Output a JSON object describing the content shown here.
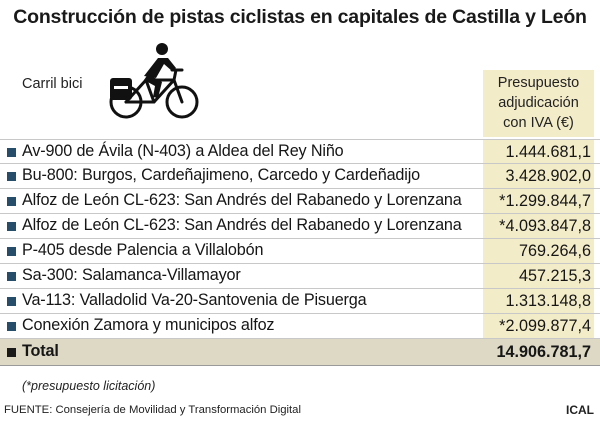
{
  "title": "Construcción de pistas ciclistas en capitales de Castilla y León",
  "header": {
    "lane_label": "Carril bici",
    "budget_label_lines": [
      "Presupuesto",
      "adjudicación",
      "con IVA (€)"
    ]
  },
  "icon": "cyclist-icon",
  "colors": {
    "budget_column": "#f3ecc9",
    "total_row": "#ddd9c5",
    "bullet": "#264e6a"
  },
  "rows": [
    {
      "name": "Av-900 de Ávila (N-403) a Aldea del Rey Niño",
      "amount": "1.444.681,1"
    },
    {
      "name": "Bu-800: Burgos, Cardeñajimeno, Carcedo y Cardeñadijo",
      "amount": "3.428.902,0"
    },
    {
      "name": "Alfoz de León CL-623: San Andrés del Rabanedo y Lorenzana",
      "amount": "*1.299.844,7"
    },
    {
      "name": "Alfoz de León CL-623: San Andrés del Rabanedo y Lorenzana",
      "amount": "*4.093.847,8"
    },
    {
      "name": "P-405 desde Palencia a Villalobón",
      "amount": "769.264,6"
    },
    {
      "name": "Sa-300: Salamanca-Villamayor",
      "amount": "457.215,3"
    },
    {
      "name": "Va-113: Valladolid Va-20-Santovenia de Pisuerga",
      "amount": "1.313.148,8"
    },
    {
      "name": "Conexión Zamora y municipos alfoz",
      "amount": "*2.099.877,4"
    }
  ],
  "total": {
    "label": "Total",
    "amount": "14.906.781,7"
  },
  "note": "(*presupuesto licitación)",
  "source": "FUENTE: Consejería de Movilidad y Transformación Digital",
  "credit": "ICAL"
}
